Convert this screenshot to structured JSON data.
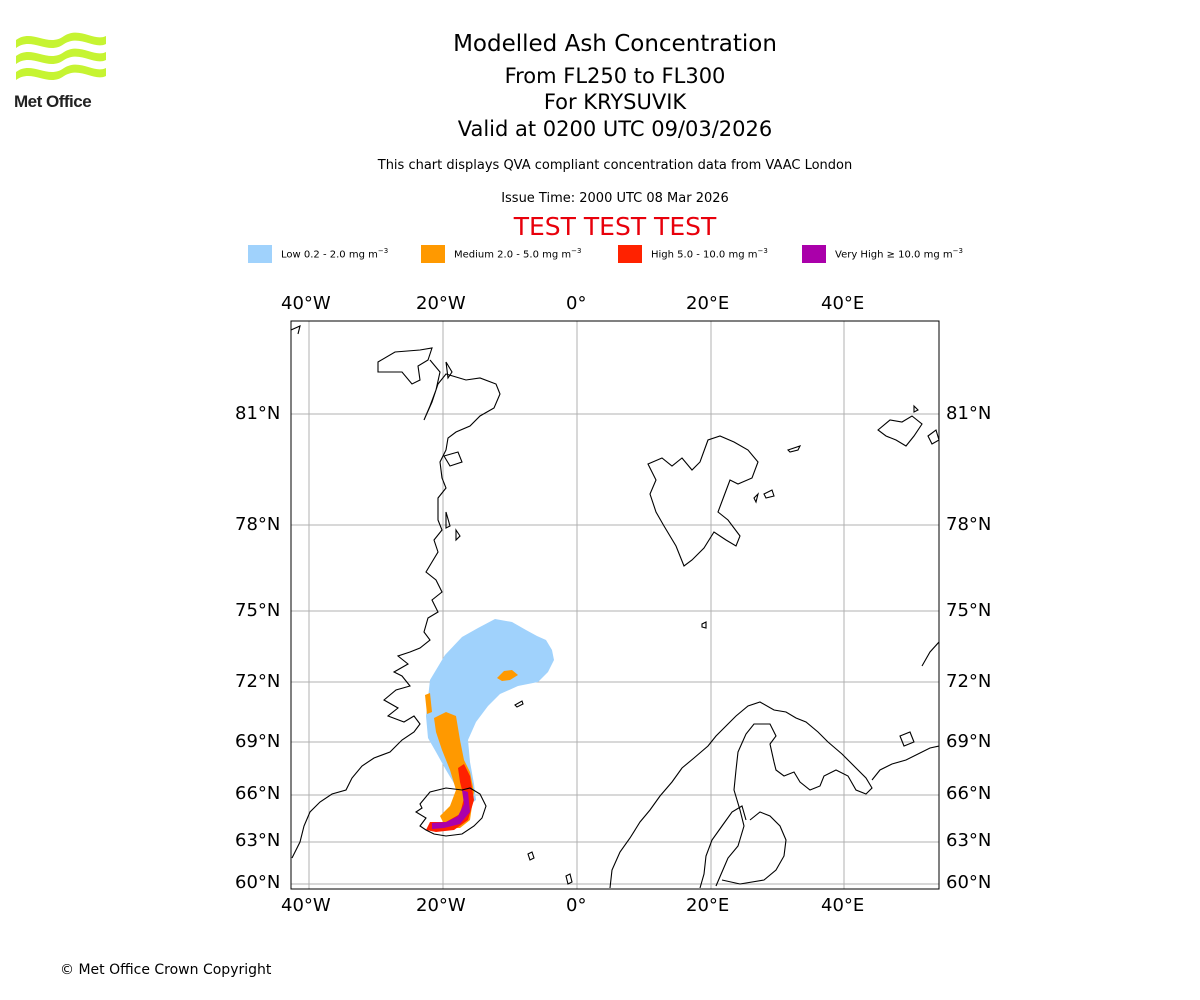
{
  "logo": {
    "text": "Met Office"
  },
  "titles": {
    "main": "Modelled Ash Concentration",
    "level": "From FL250 to FL300",
    "volcano": "For KRYSUVIK",
    "valid": "Valid at 0200 UTC 09/03/2026"
  },
  "description": "This chart displays QVA compliant concentration data from VAAC London",
  "issue_time": "Issue Time: 2000 UTC 08 Mar 2026",
  "test_banner": "TEST TEST TEST",
  "legend": [
    {
      "label": "Low 0.2 - 2.0 mg m",
      "unit_exp": "−3",
      "color": "#a0d2fc"
    },
    {
      "label": "Medium 2.0 - 5.0 mg m",
      "unit_exp": "−3",
      "color": "#ff9900"
    },
    {
      "label": "High 5.0 - 10.0 mg m",
      "unit_exp": "−3",
      "color": "#ff2200"
    },
    {
      "label": "Very High  ≥  10.0 mg m",
      "unit_exp": "−3",
      "color": "#aa00aa"
    }
  ],
  "map": {
    "longitude_labels": [
      "40°W",
      "20°W",
      "0°",
      "20°E",
      "40°E"
    ],
    "latitude_labels": [
      "81°N",
      "78°N",
      "75°N",
      "72°N",
      "69°N",
      "66°N",
      "63°N",
      "60°N"
    ],
    "gridline_color": "#b0b0b0"
  },
  "copyright": "© Met Office Crown Copyright"
}
